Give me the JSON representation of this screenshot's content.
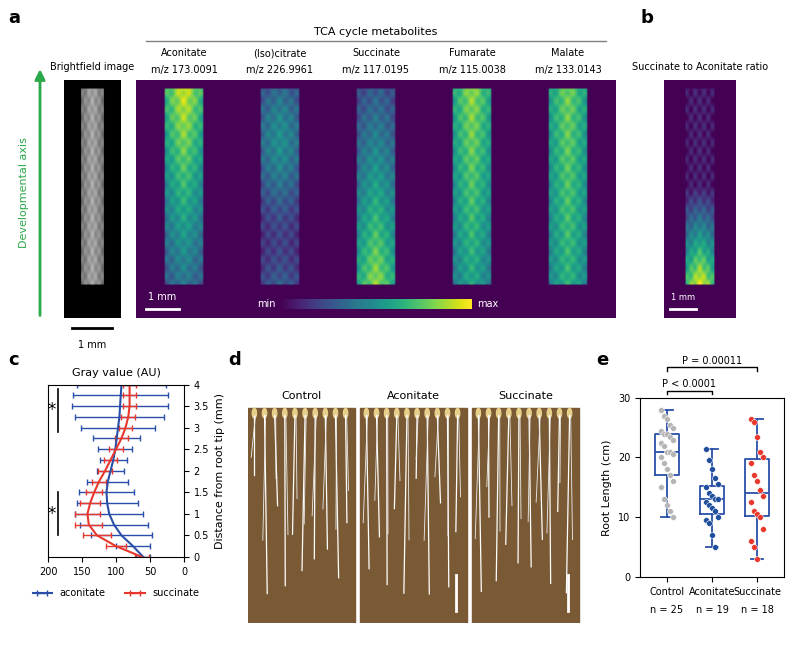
{
  "panel_labels": [
    "a",
    "b",
    "c",
    "d",
    "e"
  ],
  "imaging": {
    "axis_label": "Developmental axis",
    "brightfield_title": "Brightfield image",
    "group_title": "TCA cycle metabolites",
    "metabolites": [
      {
        "name": "Aconitate",
        "mz": "m/z 173.0091"
      },
      {
        "name": "(Iso)citrate",
        "mz": "m/z 226.9961"
      },
      {
        "name": "Succinate",
        "mz": "m/z 117.0195"
      },
      {
        "name": "Fumarate",
        "mz": "m/z 115.0038"
      },
      {
        "name": "Malate",
        "mz": "m/z 133.0143"
      }
    ],
    "scale_bar": "1 mm",
    "colorbar": {
      "min": "min",
      "max": "max"
    },
    "ratio_title": "Succinate to Aconitate ratio"
  },
  "photos": {
    "conditions": [
      "Control",
      "Aconitate",
      "Succinate"
    ]
  },
  "chart_data": [
    {
      "type": "line",
      "orientation": "horizontal",
      "title": "Gray value (AU)",
      "ylabel": "Distance from root tip (mm)",
      "y": [
        0,
        0.25,
        0.5,
        0.75,
        1,
        1.25,
        1.5,
        1.75,
        2,
        2.25,
        2.5,
        2.75,
        3,
        3.25,
        3.5,
        3.75,
        4
      ],
      "series": [
        {
          "name": "aconitate",
          "color": "#2a4fa8",
          "values": [
            60,
            75,
            92,
            103,
            110,
            113,
            114,
            112,
            108,
            104,
            101,
            99,
            97,
            95,
            94,
            93,
            92
          ],
          "errors": [
            10,
            25,
            45,
            50,
            50,
            45,
            40,
            30,
            20,
            20,
            25,
            35,
            55,
            65,
            70,
            70,
            65
          ]
        },
        {
          "name": "succinate",
          "color": "#e8382d",
          "values": [
            62,
            100,
            128,
            140,
            142,
            138,
            132,
            125,
            116,
            108,
            100,
            92,
            86,
            82,
            80,
            80,
            80
          ],
          "errors": [
            10,
            15,
            20,
            20,
            18,
            15,
            12,
            10,
            10,
            10,
            10,
            10,
            10,
            10,
            10,
            10,
            10
          ]
        }
      ],
      "xlim": [
        200,
        0
      ],
      "xticks": [
        200,
        150,
        100,
        50,
        0
      ],
      "ylim": [
        0,
        4
      ],
      "yticks": [
        0,
        0.5,
        1,
        1.5,
        2,
        2.5,
        3,
        3.5,
        4
      ],
      "legend": "bottom",
      "annotations": [
        {
          "text": "*",
          "y": [
            2.9,
            3.9
          ]
        },
        {
          "text": "*",
          "y": [
            0.5,
            1.5
          ]
        }
      ]
    },
    {
      "type": "box",
      "ylabel": "Root Length (cm)",
      "categories": [
        "Control",
        "Aconitate",
        "Succinate"
      ],
      "points": [
        [
          28,
          27,
          26.5,
          25.5,
          25,
          24.5,
          24,
          24,
          23.5,
          23,
          22.5,
          22,
          21,
          21,
          20.5,
          20,
          19,
          18,
          17,
          16,
          15,
          13,
          12,
          11,
          10
        ],
        [
          21.5,
          19.5,
          18,
          16.5,
          15.5,
          15,
          14,
          13.5,
          13,
          13,
          12.5,
          12,
          11.5,
          11,
          10,
          9.5,
          9,
          7,
          5
        ],
        [
          26.5,
          26,
          23.5,
          21,
          20,
          19,
          17,
          16,
          14.5,
          13.5,
          12.5,
          11,
          10.5,
          10,
          8,
          6,
          5,
          3
        ]
      ],
      "colors": [
        "#b5b5b5",
        "#1f4e9c",
        "#e8382d"
      ],
      "color": "#2a4fa8",
      "n_labels": [
        "n = 25",
        "n = 19",
        "n = 18"
      ],
      "ylim": [
        0,
        30
      ],
      "yticks": [
        0,
        10,
        20,
        30
      ],
      "comparisons": [
        {
          "groups": [
            0,
            1
          ],
          "label": "P < 0.0001"
        },
        {
          "groups": [
            0,
            2
          ],
          "label": "P = 0.00011"
        }
      ]
    }
  ]
}
